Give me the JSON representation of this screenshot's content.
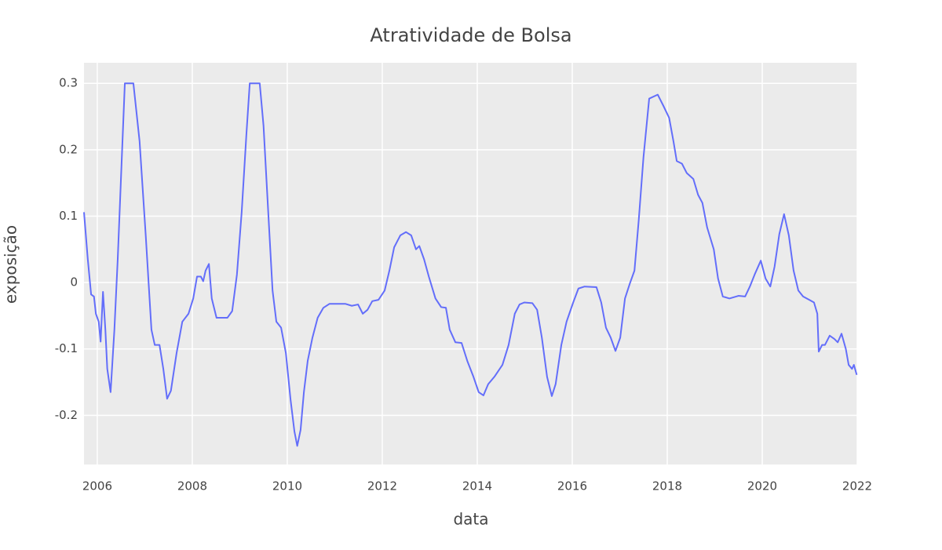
{
  "chart_data": {
    "type": "line",
    "title": "Atratividade de Bolsa",
    "x_label": "data",
    "y_label": "exposição",
    "color": "#636efa",
    "grid": true,
    "xlim": [
      2005.72,
      2022
    ],
    "xticks": [
      2006,
      2008,
      2010,
      2012,
      2014,
      2016,
      2018,
      2020,
      2022
    ],
    "ylim": [
      -0.274,
      0.331
    ],
    "yticks": [
      -0.2,
      -0.1,
      0,
      0.1,
      0.2,
      0.3
    ],
    "x": [
      2005.72,
      2005.8,
      2005.87,
      2005.93,
      2005.97,
      2006.03,
      2006.07,
      2006.12,
      2006.17,
      2006.21,
      2006.28,
      2006.36,
      2006.43,
      2006.51,
      2006.58,
      2006.76,
      2006.89,
      2007.02,
      2007.14,
      2007.21,
      2007.31,
      2007.39,
      2007.47,
      2007.55,
      2007.67,
      2007.79,
      2007.92,
      2008.02,
      2008.1,
      2008.18,
      2008.23,
      2008.28,
      2008.35,
      2008.41,
      2008.51,
      2008.74,
      2008.84,
      2008.94,
      2009.04,
      2009.14,
      2009.21,
      2009.42,
      2009.5,
      2009.59,
      2009.69,
      2009.77,
      2009.87,
      2009.97,
      2010.07,
      2010.15,
      2010.21,
      2010.28,
      2010.35,
      2010.43,
      2010.53,
      2010.64,
      2010.76,
      2010.89,
      2011.22,
      2011.36,
      2011.49,
      2011.59,
      2011.69,
      2011.79,
      2011.92,
      2012.05,
      2012.15,
      2012.25,
      2012.38,
      2012.5,
      2012.61,
      2012.71,
      2012.78,
      2012.88,
      2012.98,
      2013.12,
      2013.24,
      2013.34,
      2013.42,
      2013.54,
      2013.67,
      2013.79,
      2013.92,
      2014.03,
      2014.13,
      2014.23,
      2014.36,
      2014.53,
      2014.66,
      2014.79,
      2014.89,
      2014.99,
      2015.16,
      2015.26,
      2015.36,
      2015.47,
      2015.57,
      2015.65,
      2015.77,
      2015.88,
      2016.02,
      2016.13,
      2016.26,
      2016.51,
      2016.61,
      2016.71,
      2016.81,
      2016.91,
      2017.01,
      2017.11,
      2017.21,
      2017.31,
      2017.4,
      2017.5,
      2017.62,
      2017.8,
      2017.92,
      2018.04,
      2018.13,
      2018.2,
      2018.31,
      2018.41,
      2018.55,
      2018.65,
      2018.74,
      2018.84,
      2018.98,
      2019.07,
      2019.17,
      2019.31,
      2019.5,
      2019.64,
      2019.74,
      2019.84,
      2019.97,
      2020.07,
      2020.17,
      2020.26,
      2020.36,
      2020.46,
      2020.56,
      2020.66,
      2020.76,
      2020.86,
      2020.99,
      2021.09,
      2021.16,
      2021.19,
      2021.26,
      2021.32,
      2021.42,
      2021.52,
      2021.59,
      2021.67,
      2021.76,
      2021.82,
      2021.89,
      2021.93,
      2021.99
    ],
    "series": [
      {
        "values": [
          0.106,
          0.035,
          -0.018,
          -0.021,
          -0.047,
          -0.059,
          -0.089,
          -0.014,
          -0.071,
          -0.13,
          -0.165,
          -0.071,
          0.035,
          0.177,
          0.3,
          0.3,
          0.213,
          0.071,
          -0.071,
          -0.094,
          -0.094,
          -0.13,
          -0.175,
          -0.163,
          -0.106,
          -0.059,
          -0.047,
          -0.024,
          0.009,
          0.009,
          0.002,
          0.018,
          0.028,
          -0.024,
          -0.053,
          -0.053,
          -0.043,
          0.012,
          0.106,
          0.224,
          0.3,
          0.3,
          0.236,
          0.118,
          -0.012,
          -0.059,
          -0.068,
          -0.106,
          -0.177,
          -0.224,
          -0.246,
          -0.222,
          -0.165,
          -0.118,
          -0.083,
          -0.053,
          -0.038,
          -0.032,
          -0.032,
          -0.035,
          -0.033,
          -0.047,
          -0.041,
          -0.028,
          -0.026,
          -0.012,
          0.018,
          0.053,
          0.071,
          0.076,
          0.071,
          0.05,
          0.055,
          0.035,
          0.009,
          -0.024,
          -0.037,
          -0.038,
          -0.071,
          -0.09,
          -0.091,
          -0.118,
          -0.142,
          -0.165,
          -0.17,
          -0.153,
          -0.142,
          -0.124,
          -0.094,
          -0.047,
          -0.033,
          -0.03,
          -0.031,
          -0.041,
          -0.083,
          -0.142,
          -0.171,
          -0.153,
          -0.094,
          -0.059,
          -0.03,
          -0.009,
          -0.006,
          -0.007,
          -0.03,
          -0.068,
          -0.083,
          -0.103,
          -0.083,
          -0.024,
          -0.002,
          0.018,
          0.094,
          0.189,
          0.277,
          0.283,
          0.266,
          0.248,
          0.213,
          0.183,
          0.179,
          0.165,
          0.156,
          0.132,
          0.12,
          0.083,
          0.05,
          0.006,
          -0.021,
          -0.024,
          -0.02,
          -0.021,
          -0.006,
          0.012,
          0.033,
          0.006,
          -0.006,
          0.024,
          0.073,
          0.103,
          0.071,
          0.018,
          -0.012,
          -0.021,
          -0.026,
          -0.03,
          -0.047,
          -0.104,
          -0.094,
          -0.094,
          -0.08,
          -0.085,
          -0.09,
          -0.077,
          -0.1,
          -0.124,
          -0.13,
          -0.124,
          -0.139
        ]
      }
    ]
  }
}
